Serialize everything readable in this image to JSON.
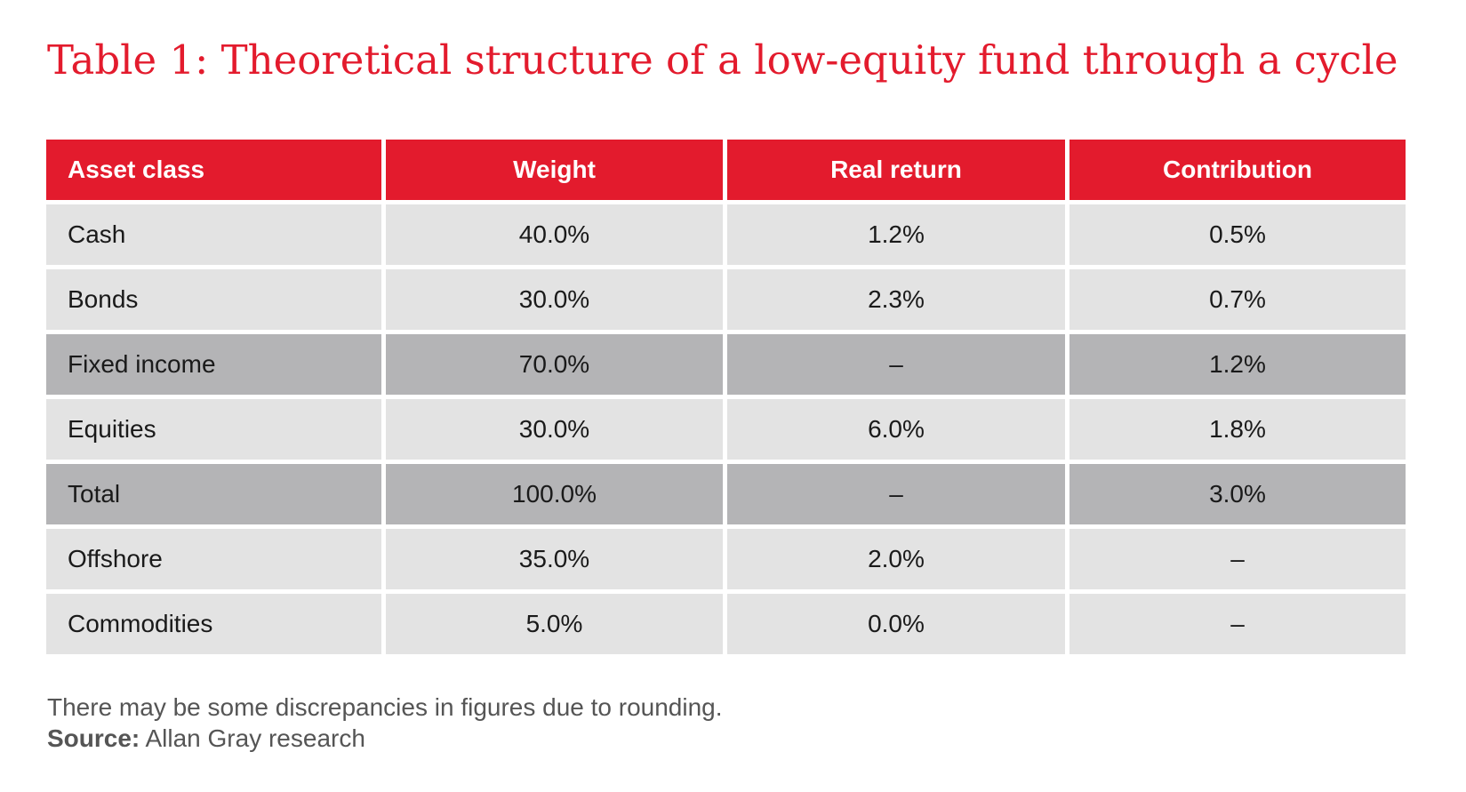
{
  "title": "Table 1: Theoretical structure of a low-equity fund through a cycle",
  "table": {
    "headers": [
      "Asset class",
      "Weight",
      "Real return",
      "Contribution"
    ],
    "rows": [
      {
        "cells": [
          "Cash",
          "40.0%",
          "1.2%",
          "0.5%"
        ],
        "highlight": false
      },
      {
        "cells": [
          "Bonds",
          "30.0%",
          "2.3%",
          "0.7%"
        ],
        "highlight": false
      },
      {
        "cells": [
          "Fixed income",
          "70.0%",
          "–",
          "1.2%"
        ],
        "highlight": true
      },
      {
        "cells": [
          "Equities",
          "30.0%",
          "6.0%",
          "1.8%"
        ],
        "highlight": false
      },
      {
        "cells": [
          "Total",
          "100.0%",
          "–",
          "3.0%"
        ],
        "highlight": true
      },
      {
        "cells": [
          "Offshore",
          "35.0%",
          "2.0%",
          "–"
        ],
        "highlight": false
      },
      {
        "cells": [
          "Commodities",
          "5.0%",
          "0.0%",
          "–"
        ],
        "highlight": false
      }
    ]
  },
  "notes": {
    "discrepancy": "There may be some discrepancies in figures due to rounding.",
    "source_label": "Source:",
    "source_text": "Allan Gray research"
  },
  "colors": {
    "title": "#e31b2d",
    "header_bg": "#e31b2d",
    "row_bg": "#e3e3e3",
    "highlight_bg": "#b4b4b6",
    "note_text": "#555555"
  }
}
